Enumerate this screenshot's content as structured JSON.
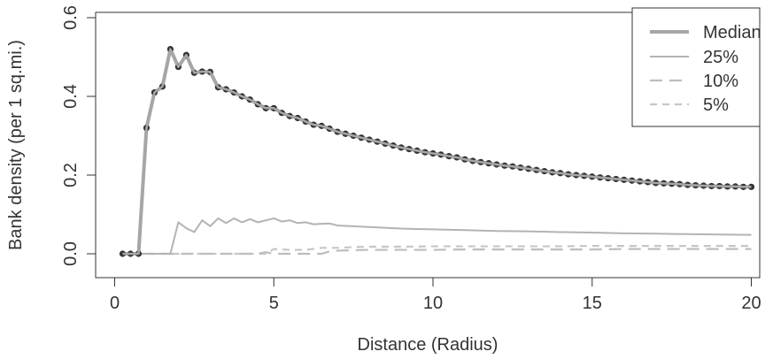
{
  "chart_data": {
    "type": "line",
    "title": "",
    "xlabel": "Distance (Radius)",
    "ylabel": "Bank density (per 1 sq.mi.)",
    "xlim": [
      0,
      20.5
    ],
    "ylim": [
      -0.01,
      0.6
    ],
    "x_ticks": [
      0,
      5,
      10,
      15,
      20
    ],
    "x_tick_labels": [
      "0",
      "5",
      "10",
      "15",
      "20"
    ],
    "y_ticks": [
      0.0,
      0.2,
      0.4,
      0.6
    ],
    "y_tick_labels": [
      "0.0",
      "0.2",
      "0.4",
      "0.6"
    ],
    "grid": false,
    "legend_position": "top-right",
    "colors": {
      "median": "#a6a6a6",
      "p25": "#b3b3b3",
      "p10": "#bdbdbd",
      "p5": "#c6c6c6",
      "points": "#333333",
      "axis": "#333333"
    },
    "series": [
      {
        "name": "Median",
        "style": "solid-thick",
        "markers": true,
        "x": [
          0.25,
          0.5,
          0.75,
          1.0,
          1.25,
          1.5,
          1.75,
          2.0,
          2.25,
          2.5,
          2.75,
          3.0,
          3.25,
          3.5,
          3.75,
          4.0,
          4.25,
          4.5,
          4.75,
          5.0,
          5.25,
          5.5,
          5.75,
          6.0,
          6.25,
          6.5,
          6.75,
          7.0,
          7.25,
          7.5,
          7.75,
          8.0,
          8.25,
          8.5,
          8.75,
          9.0,
          9.25,
          9.5,
          9.75,
          10.0,
          10.25,
          10.5,
          10.75,
          11.0,
          11.25,
          11.5,
          11.75,
          12.0,
          12.25,
          12.5,
          12.75,
          13.0,
          13.25,
          13.5,
          13.75,
          14.0,
          14.25,
          14.5,
          14.75,
          15.0,
          15.25,
          15.5,
          15.75,
          16.0,
          16.25,
          16.5,
          16.75,
          17.0,
          17.25,
          17.5,
          17.75,
          18.0,
          18.25,
          18.5,
          18.75,
          19.0,
          19.25,
          19.5,
          19.75,
          20.0
        ],
        "values": [
          0.0,
          0.0,
          0.0,
          0.32,
          0.41,
          0.425,
          0.52,
          0.475,
          0.505,
          0.46,
          0.463,
          0.462,
          0.423,
          0.418,
          0.41,
          0.4,
          0.392,
          0.38,
          0.37,
          0.37,
          0.358,
          0.35,
          0.345,
          0.336,
          0.328,
          0.325,
          0.318,
          0.31,
          0.305,
          0.3,
          0.295,
          0.29,
          0.285,
          0.28,
          0.275,
          0.27,
          0.266,
          0.262,
          0.258,
          0.255,
          0.252,
          0.248,
          0.245,
          0.24,
          0.236,
          0.233,
          0.23,
          0.227,
          0.224,
          0.222,
          0.219,
          0.216,
          0.213,
          0.21,
          0.207,
          0.205,
          0.202,
          0.2,
          0.198,
          0.196,
          0.194,
          0.192,
          0.19,
          0.188,
          0.186,
          0.184,
          0.182,
          0.18,
          0.179,
          0.178,
          0.177,
          0.175,
          0.174,
          0.173,
          0.172,
          0.172,
          0.171,
          0.171,
          0.17,
          0.17
        ]
      },
      {
        "name": "25%",
        "style": "solid-thin",
        "markers": false,
        "x": [
          0.25,
          0.5,
          0.75,
          1.0,
          1.25,
          1.5,
          1.75,
          2.0,
          2.25,
          2.5,
          2.75,
          3.0,
          3.25,
          3.5,
          3.75,
          4.0,
          4.25,
          4.5,
          4.75,
          5.0,
          5.25,
          5.5,
          5.75,
          6.0,
          6.25,
          6.5,
          6.75,
          7.0,
          7.5,
          8.0,
          8.5,
          9.0,
          9.5,
          10.0,
          11.0,
          12.0,
          13.0,
          14.0,
          15.0,
          16.0,
          17.0,
          18.0,
          19.0,
          20.0
        ],
        "values": [
          0.0,
          0.0,
          0.0,
          0.0,
          0.0,
          0.0,
          0.0,
          0.08,
          0.065,
          0.055,
          0.085,
          0.07,
          0.09,
          0.078,
          0.09,
          0.08,
          0.088,
          0.08,
          0.085,
          0.09,
          0.082,
          0.085,
          0.078,
          0.08,
          0.075,
          0.076,
          0.077,
          0.072,
          0.07,
          0.068,
          0.066,
          0.064,
          0.063,
          0.062,
          0.06,
          0.058,
          0.057,
          0.055,
          0.054,
          0.052,
          0.051,
          0.05,
          0.049,
          0.048
        ]
      },
      {
        "name": "10%",
        "style": "dashed-long",
        "markers": false,
        "x": [
          0.25,
          1.0,
          2.0,
          3.0,
          4.0,
          4.5,
          4.75,
          5.0,
          5.5,
          6.0,
          6.5,
          6.75,
          7.0,
          8.0,
          9.0,
          10.0,
          11.0,
          12.0,
          13.0,
          14.0,
          15.0,
          16.0,
          17.0,
          18.0,
          19.0,
          20.0
        ],
        "values": [
          0.0,
          0.0,
          0.0,
          0.0,
          0.0,
          0.0,
          0.004,
          0.0,
          0.0,
          0.0,
          0.0,
          0.006,
          0.008,
          0.01,
          0.01,
          0.01,
          0.011,
          0.011,
          0.011,
          0.011,
          0.011,
          0.012,
          0.012,
          0.012,
          0.012,
          0.012
        ]
      },
      {
        "name": "5%",
        "style": "dashed-short",
        "markers": false,
        "x": [
          0.25,
          1.0,
          2.0,
          3.0,
          4.0,
          4.75,
          5.0,
          5.5,
          6.0,
          6.5,
          7.0,
          7.5,
          8.0,
          9.0,
          10.0,
          11.0,
          12.0,
          13.0,
          14.0,
          15.0,
          16.0,
          17.0,
          18.0,
          19.0,
          20.0
        ],
        "values": [
          0.0,
          0.0,
          0.0,
          0.0,
          0.0,
          0.0,
          0.012,
          0.01,
          0.01,
          0.015,
          0.015,
          0.017,
          0.018,
          0.018,
          0.019,
          0.019,
          0.019,
          0.019,
          0.019,
          0.02,
          0.02,
          0.02,
          0.02,
          0.02,
          0.02
        ]
      }
    ]
  }
}
